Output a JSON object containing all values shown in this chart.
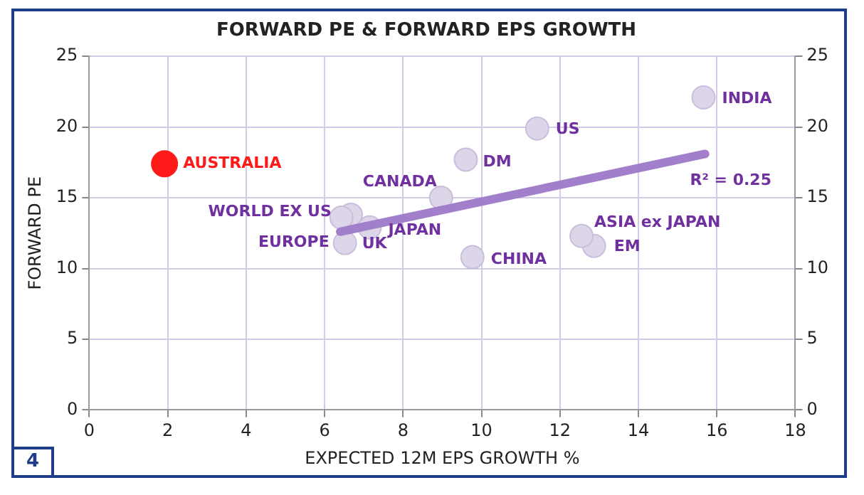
{
  "chart_data": {
    "type": "scatter",
    "title": "FORWARD PE & FORWARD EPS GROWTH",
    "xlabel": "EXPECTED 12M EPS GROWTH %",
    "ylabel": "FORWARD PE",
    "xlim": [
      0,
      18
    ],
    "xticks": [
      0,
      2,
      4,
      6,
      8,
      10,
      12,
      14,
      16,
      18
    ],
    "ylim": [
      0,
      25
    ],
    "yticks": [
      0,
      5,
      10,
      15,
      20,
      25
    ],
    "y2lim": [
      0,
      25
    ],
    "y2ticks": [
      0,
      5,
      10,
      15,
      20,
      25
    ],
    "grid": true,
    "legend": false,
    "marker": "circle",
    "series": [
      {
        "name": "AUSTRALIA",
        "color": "#ff1a1a",
        "x": [
          1.92
        ],
        "values": [
          17.4
        ]
      },
      {
        "name": "WORLD EX US",
        "color": "#dcd6e8",
        "x": [
          6.43
        ],
        "values": [
          13.6
        ]
      },
      {
        "color": "#dcd6e8",
        "x": [
          6.67
        ],
        "values": [
          13.8
        ]
      },
      {
        "name": "EUROPE",
        "color": "#dcd6e8",
        "x": [
          6.52
        ],
        "values": [
          11.8
        ]
      },
      {
        "name": "JAPAN",
        "color": "#dcd6e8",
        "x": [
          7.15
        ],
        "values": [
          12.9
        ]
      },
      {
        "name": "CANADA",
        "color": "#dcd6e8",
        "x": [
          8.97
        ],
        "values": [
          15.0
        ]
      },
      {
        "name": "DM",
        "color": "#dcd6e8",
        "x": [
          9.6
        ],
        "values": [
          17.7
        ]
      },
      {
        "name": "US",
        "color": "#dcd6e8",
        "x": [
          11.42
        ],
        "values": [
          19.9
        ]
      },
      {
        "name": "INDIA",
        "color": "#dcd6e8",
        "x": [
          15.66
        ],
        "values": [
          22.1
        ]
      },
      {
        "name": "CHINA",
        "color": "#dcd6e8",
        "x": [
          9.77
        ],
        "values": [
          10.8
        ]
      },
      {
        "name": "ASIA ex JAPAN",
        "color": "#dcd6e8",
        "x": [
          12.55
        ],
        "values": [
          12.3
        ]
      },
      {
        "name": "EM",
        "color": "#dcd6e8",
        "x": [
          12.87
        ],
        "values": [
          11.6
        ]
      },
      {
        "type": "line",
        "marker": "none",
        "color": "#a27fca",
        "x": [
          6.4,
          15.7
        ],
        "values": [
          12.6,
          18.1
        ]
      }
    ],
    "annotations": [
      "R² = 0.25",
      "UK",
      "4"
    ]
  }
}
